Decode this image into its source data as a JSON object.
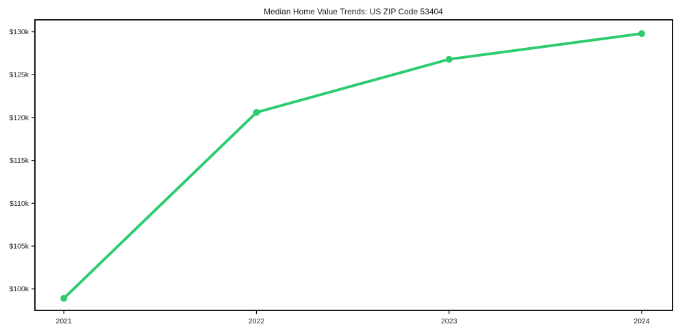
{
  "chart_data": {
    "type": "line",
    "title": "Median Home Value Trends: US ZIP Code 53404",
    "x": [
      2021,
      2022,
      2023,
      2024
    ],
    "series": [
      {
        "name": "Median Home Value",
        "values": [
          98900,
          120600,
          126800,
          129800
        ]
      }
    ],
    "x_tick_labels": [
      "2021",
      "2022",
      "2023",
      "2024"
    ],
    "y_ticks": [
      100000,
      105000,
      110000,
      115000,
      120000,
      125000,
      130000
    ],
    "y_tick_labels": [
      "$100k",
      "$105k",
      "$110k",
      "$115k",
      "$120k",
      "$125k",
      "$130k"
    ],
    "xlim": [
      2020.85,
      2024.16
    ],
    "ylim": [
      97500,
      131400
    ],
    "grid": false,
    "legend": "none",
    "line_color": "#2ecc71",
    "marker": "circle",
    "marker_color": "#2ecc71"
  },
  "colors": {
    "background": "#ffffff",
    "axis": "#000000",
    "text": "#1a1a1a"
  }
}
